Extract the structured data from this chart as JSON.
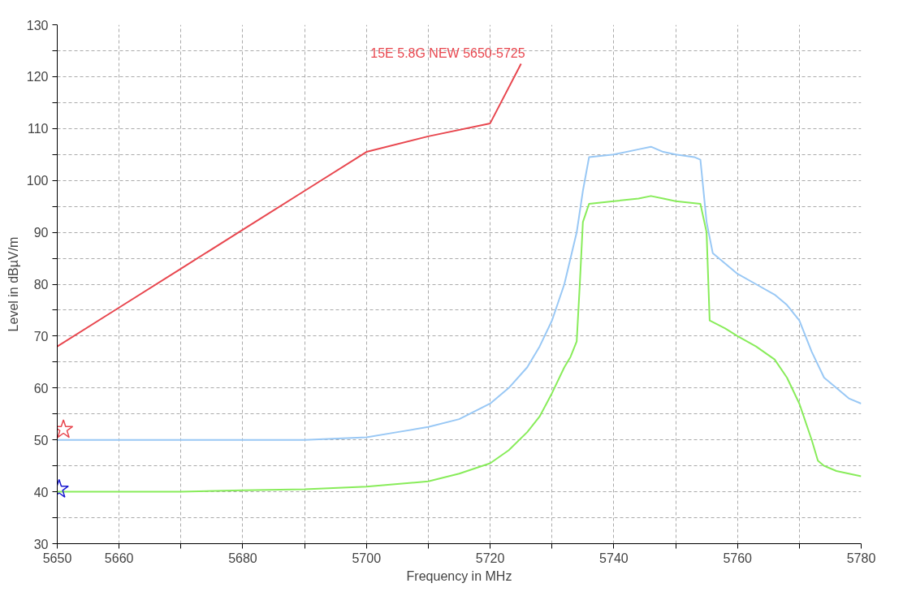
{
  "chart_data": {
    "type": "line",
    "xlabel": "Frequency in MHz",
    "ylabel": "Level in dBµV/m",
    "xlim": [
      5650,
      5780
    ],
    "ylim": [
      30,
      130
    ],
    "xticks": [
      5650,
      5660,
      {
        "value": 5670,
        "label": null
      },
      5680,
      {
        "value": 5690,
        "label": null
      },
      5700,
      {
        "value": 5710,
        "label": null
      },
      5720,
      {
        "value": 5730,
        "label": null
      },
      5740,
      {
        "value": 5750,
        "label": null
      },
      5760,
      {
        "value": 5770,
        "label": null
      },
      5780
    ],
    "yticks": [
      30,
      {
        "value": 35,
        "label": null
      },
      40,
      {
        "value": 45,
        "label": null
      },
      50,
      {
        "value": 55,
        "label": null
      },
      60,
      {
        "value": 65,
        "label": null
      },
      70,
      {
        "value": 75,
        "label": null
      },
      80,
      {
        "value": 85,
        "label": null
      },
      90,
      {
        "value": 95,
        "label": null
      },
      100,
      {
        "value": 105,
        "label": null
      },
      110,
      {
        "value": 115,
        "label": null
      },
      120,
      {
        "value": 125,
        "label": null
      },
      130
    ],
    "grid": true,
    "line_style": "solid",
    "marker": "none",
    "series": [
      {
        "name": "15E 5.8G NEW 5650-5725",
        "color": "#e8474f",
        "x": [
          5650,
          5660,
          5670,
          5680,
          5690,
          5700,
          5710,
          5720,
          5725
        ],
        "values": [
          68,
          75.5,
          83,
          90.5,
          98,
          105.5,
          108.5,
          111,
          122.5
        ]
      },
      {
        "color": "#99c8f5",
        "x": [
          5650,
          5660,
          5670,
          5680,
          5690,
          5700,
          5705,
          5710,
          5715,
          5720,
          5723,
          5726,
          5728,
          5730,
          5732,
          5733,
          5734,
          5735,
          5736,
          5740,
          5744,
          5746,
          5748,
          5750,
          5753,
          5754,
          5755,
          5756,
          5758,
          5760,
          5763,
          5766,
          5768,
          5770,
          5772,
          5774,
          5776,
          5778,
          5780
        ],
        "values": [
          50,
          50,
          50,
          50,
          50,
          50.5,
          51.5,
          52.5,
          54,
          57,
          60,
          64,
          68,
          73,
          80,
          85,
          90,
          98,
          104.5,
          105,
          106,
          106.5,
          105.5,
          105,
          104.5,
          104,
          92,
          86,
          84,
          82,
          80,
          78,
          76,
          73,
          67,
          62,
          60,
          58,
          57
        ]
      },
      {
        "color": "#88ec5a",
        "x": [
          5650,
          5660,
          5670,
          5680,
          5690,
          5700,
          5705,
          5710,
          5715,
          5720,
          5723,
          5726,
          5728,
          5730,
          5732,
          5733,
          5734,
          5734.5,
          5735,
          5736,
          5740,
          5744,
          5746,
          5748,
          5750,
          5754,
          5755,
          5755.5,
          5758,
          5760,
          5763,
          5766,
          5768,
          5770,
          5772,
          5773,
          5774,
          5776,
          5780
        ],
        "values": [
          40,
          40,
          40,
          40.3,
          40.5,
          41,
          41.5,
          42,
          43.5,
          45.5,
          48,
          51.5,
          54.5,
          59,
          64,
          66,
          69,
          80,
          92,
          95.5,
          96,
          96.5,
          97,
          96.5,
          96,
          95.5,
          90,
          73,
          71.5,
          70,
          68,
          65.5,
          62,
          57,
          50,
          46,
          45,
          44,
          43
        ]
      },
      {
        "type": "scatter",
        "marker": "star",
        "color": "#e8474f",
        "x": [
          5651
        ],
        "values": [
          52
        ]
      },
      {
        "type": "scatter",
        "marker": "star",
        "color": "#1a1ad0",
        "x": [
          5650.3
        ],
        "values": [
          40.5
        ]
      }
    ]
  }
}
